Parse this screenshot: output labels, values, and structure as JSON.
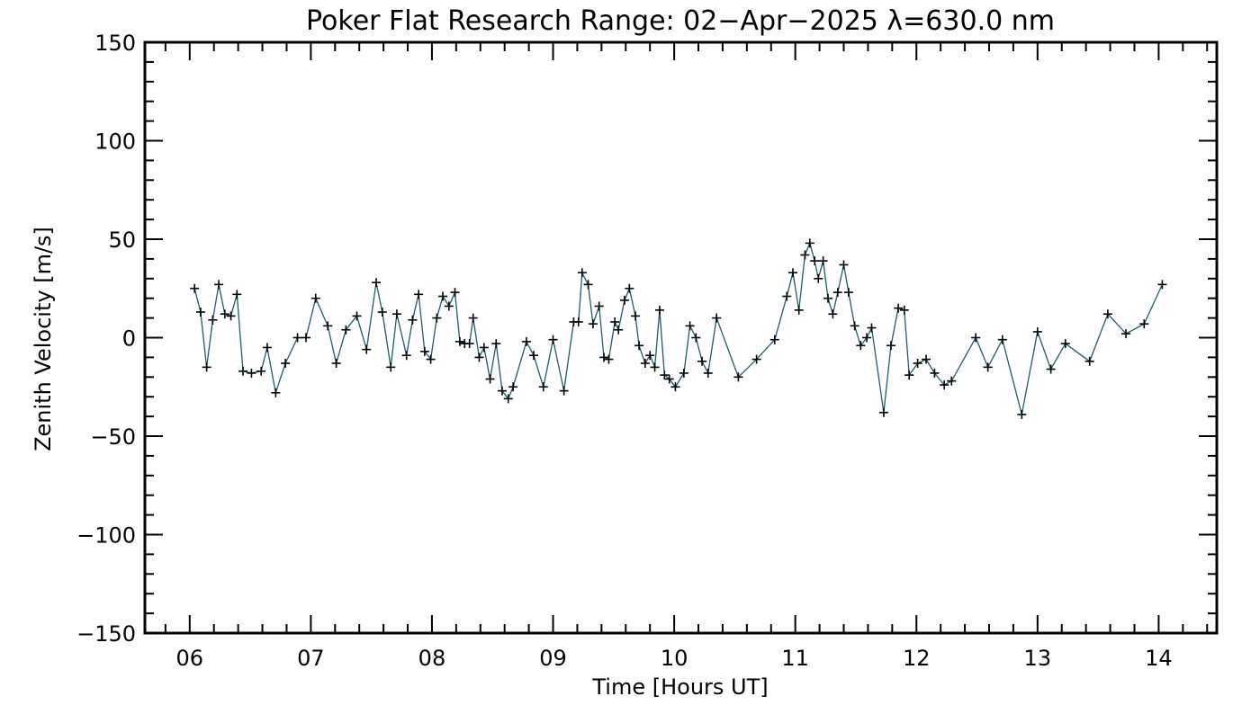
{
  "chart_data": {
    "type": "line",
    "title": "Poker Flat Research Range: 02−Apr−2025 λ=630.0 nm",
    "xlabel": "Time [Hours UT]",
    "ylabel": "Zenith Velocity [m/s]",
    "xlim": [
      5.63,
      14.48
    ],
    "ylim": [
      -150,
      150
    ],
    "x_ticks": [
      {
        "value": 6,
        "label": "06"
      },
      {
        "value": 7,
        "label": "07"
      },
      {
        "value": 8,
        "label": "08"
      },
      {
        "value": 9,
        "label": "09"
      },
      {
        "value": 10,
        "label": "10"
      },
      {
        "value": 11,
        "label": "11"
      },
      {
        "value": 12,
        "label": "12"
      },
      {
        "value": 13,
        "label": "13"
      },
      {
        "value": 14,
        "label": "14"
      }
    ],
    "y_ticks": [
      {
        "value": 150,
        "label": "150"
      },
      {
        "value": 100,
        "label": "100"
      },
      {
        "value": 50,
        "label": "50"
      },
      {
        "value": 0,
        "label": "0"
      },
      {
        "value": -50,
        "label": "−50"
      },
      {
        "value": -100,
        "label": "−100"
      },
      {
        "value": -150,
        "label": "−150"
      }
    ],
    "grid": false,
    "legend": "none",
    "line_color": "#1f5a6e",
    "marker": "+",
    "series": [
      {
        "x": [
          6.04,
          6.09,
          6.14,
          6.19,
          6.24,
          6.29,
          6.34,
          6.39,
          6.44,
          6.51,
          6.59,
          6.64,
          6.71,
          6.79,
          6.89,
          6.96,
          7.04,
          7.14,
          7.21,
          7.29,
          7.38,
          7.46,
          7.54,
          7.59,
          7.66,
          7.71,
          7.79,
          7.84,
          7.89,
          7.94,
          7.99,
          8.04,
          8.09,
          8.14,
          8.19,
          8.23,
          8.27,
          8.31,
          8.34,
          8.39,
          8.43,
          8.48,
          8.53,
          8.58,
          8.63,
          8.67,
          8.78,
          8.84,
          8.92,
          9.0,
          9.09,
          9.17,
          9.21,
          9.24,
          9.29,
          9.33,
          9.38,
          9.42,
          9.46,
          9.51,
          9.54,
          9.59,
          9.63,
          9.68,
          9.71,
          9.76,
          9.8,
          9.84,
          9.88,
          9.92,
          9.96,
          10.01,
          10.08,
          10.13,
          10.18,
          10.23,
          10.28,
          10.35,
          10.53,
          10.68,
          10.83,
          10.93,
          10.98,
          11.03,
          11.08,
          11.12,
          11.16,
          11.19,
          11.23,
          11.27,
          11.31,
          11.35,
          11.4,
          11.44,
          11.49,
          11.54,
          11.59,
          11.63,
          11.73,
          11.79,
          11.85,
          11.9,
          11.94,
          12.01,
          12.08,
          12.15,
          12.23,
          12.29,
          12.49,
          12.59,
          12.71,
          12.87,
          13.0,
          13.11,
          13.23,
          13.43,
          13.58,
          13.73,
          13.88,
          14.03
        ],
        "y": [
          25,
          13,
          -15,
          9,
          27,
          12,
          11,
          22,
          -17,
          -18,
          -17,
          -5,
          -28,
          -13,
          0,
          0,
          20,
          6,
          -13,
          4,
          11,
          -6,
          28,
          13,
          -15,
          12,
          -9,
          9,
          22,
          -7,
          -11,
          10,
          21,
          16,
          23,
          -2,
          -3,
          -3,
          10,
          -10,
          -5,
          -21,
          -3,
          -27,
          -31,
          -25,
          -2,
          -9,
          -25,
          -1,
          -27,
          8,
          8,
          33,
          27,
          7,
          16,
          -10,
          -11,
          8,
          4,
          19,
          25,
          11,
          -4,
          -13,
          -9,
          -15,
          14,
          -19,
          -21,
          -25,
          -18,
          6,
          0,
          -12,
          -18,
          10,
          -20,
          -11,
          -1,
          21,
          33,
          14,
          42,
          48,
          39,
          30,
          39,
          20,
          12,
          23,
          37,
          23,
          6,
          -4,
          0,
          5,
          -38,
          -4,
          15,
          14,
          -19,
          -13,
          -11,
          -18,
          -24,
          -22,
          0,
          -15,
          -1,
          -39,
          3,
          -16,
          -3,
          -12,
          12,
          2,
          7,
          27
        ]
      }
    ]
  }
}
